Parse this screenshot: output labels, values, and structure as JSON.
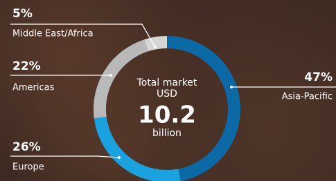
{
  "chart_data": {
    "type": "donut",
    "categories": [
      "Asia-Pacific",
      "Europe",
      "Americas",
      "Middle East/Africa"
    ],
    "values": [
      47,
      26,
      22,
      5
    ],
    "value_labels": [
      "47%",
      "26%",
      "22%",
      "5%"
    ],
    "colors": [
      "#0b6aa6",
      "#19a2de",
      "#b9b9b9",
      "#d6d6d6"
    ],
    "center": {
      "line1": "Total market",
      "line2": "USD",
      "value": 10.2,
      "line3": "billion"
    }
  }
}
